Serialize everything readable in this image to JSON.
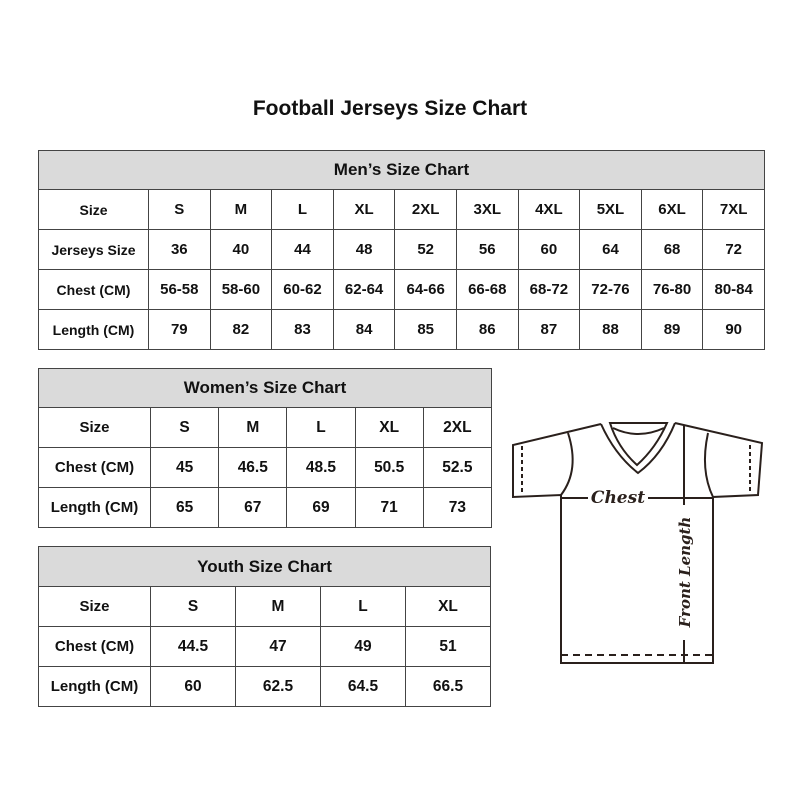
{
  "title": "Football Jerseys Size Chart",
  "men": {
    "title": "Men’s Size Chart",
    "rows": [
      {
        "label": "Size",
        "values": [
          "S",
          "M",
          "L",
          "XL",
          "2XL",
          "3XL",
          "4XL",
          "5XL",
          "6XL",
          "7XL"
        ]
      },
      {
        "label": "Jerseys Size",
        "values": [
          "36",
          "40",
          "44",
          "48",
          "52",
          "56",
          "60",
          "64",
          "68",
          "72"
        ]
      },
      {
        "label": "Chest (CM)",
        "values": [
          "56-58",
          "58-60",
          "60-62",
          "62-64",
          "64-66",
          "66-68",
          "68-72",
          "72-76",
          "76-80",
          "80-84"
        ]
      },
      {
        "label": "Length (CM)",
        "values": [
          "79",
          "82",
          "83",
          "84",
          "85",
          "86",
          "87",
          "88",
          "89",
          "90"
        ]
      }
    ]
  },
  "women": {
    "title": "Women’s Size Chart",
    "rows": [
      {
        "label": "Size",
        "values": [
          "S",
          "M",
          "L",
          "XL",
          "2XL"
        ]
      },
      {
        "label": "Chest (CM)",
        "values": [
          "45",
          "46.5",
          "48.5",
          "50.5",
          "52.5"
        ]
      },
      {
        "label": "Length (CM)",
        "values": [
          "65",
          "67",
          "69",
          "71",
          "73"
        ]
      }
    ]
  },
  "youth": {
    "title": "Youth Size Chart",
    "rows": [
      {
        "label": "Size",
        "values": [
          "S",
          "M",
          "L",
          "XL"
        ]
      },
      {
        "label": "Chest (CM)",
        "values": [
          "44.5",
          "47",
          "49",
          "51"
        ]
      },
      {
        "label": "Length (CM)",
        "values": [
          "60",
          "62.5",
          "64.5",
          "66.5"
        ]
      }
    ]
  },
  "diagram": {
    "chest_label": "Chest",
    "length_label": "Front Length"
  },
  "colors": {
    "header_bg": "#dadada",
    "border": "#444444"
  }
}
